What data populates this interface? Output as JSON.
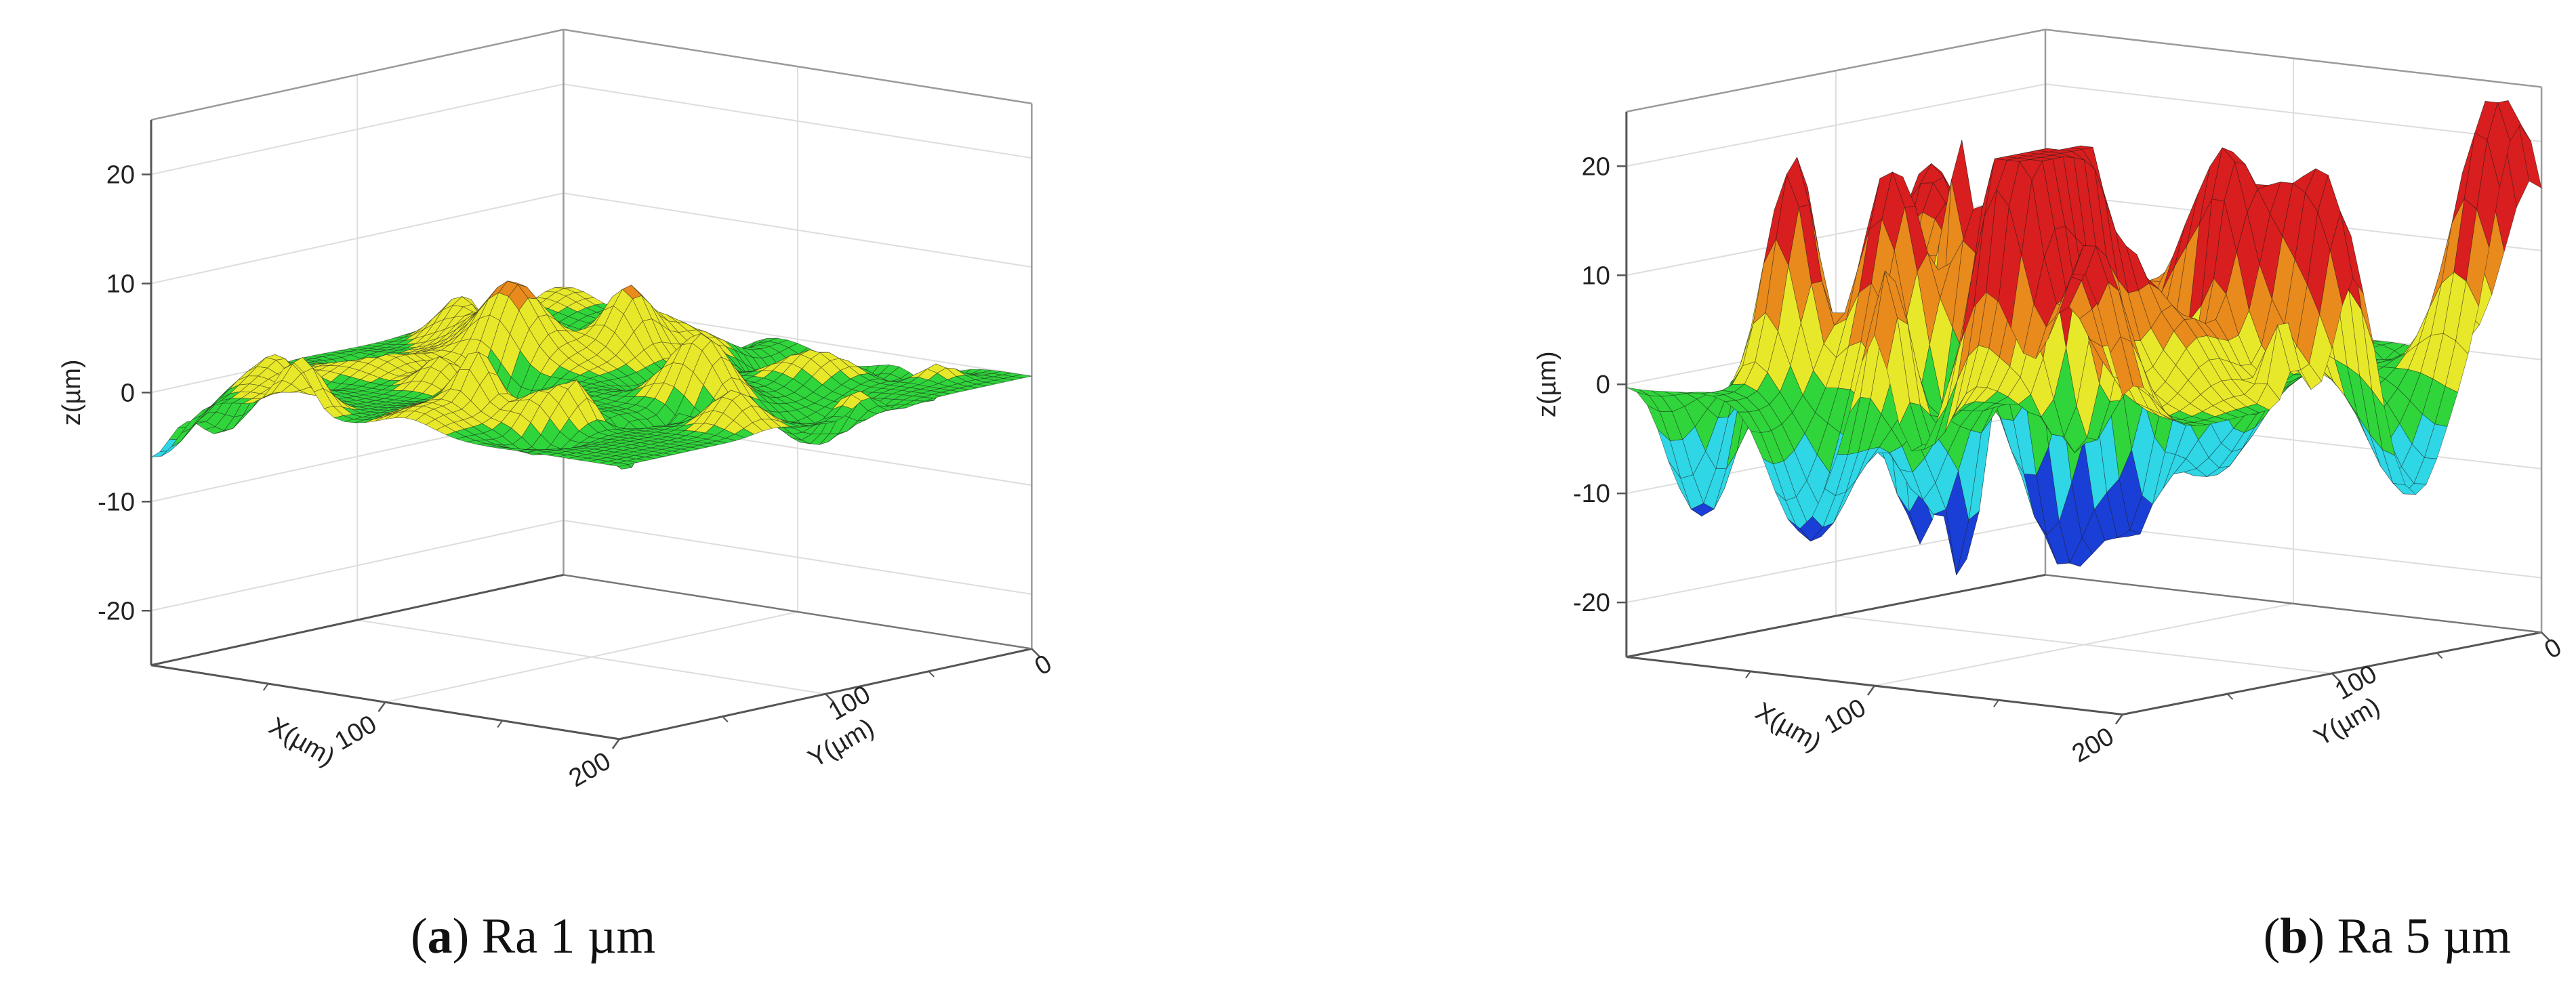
{
  "chart_data": [
    {
      "type": "surface3d",
      "panel_label": "a",
      "caption": "Ra 1 µm",
      "xlabel": "X(µm)",
      "ylabel": "Y(µm)",
      "zlabel": "z(µm)",
      "z_ticks": [
        "20",
        "10",
        "0",
        "-10",
        "-20"
      ],
      "x_ticks": [
        "100",
        "200"
      ],
      "y_ticks": [
        "0",
        "100"
      ],
      "zlim": [
        -25,
        25
      ],
      "xlim": [
        0,
        200
      ],
      "ylim": [
        0,
        200
      ],
      "surface_amplitude": 6,
      "colors": [
        "#1a3fd6",
        "#2ed6e6",
        "#2fd53a",
        "#e8e82a",
        "#e88a1c",
        "#d81e1e"
      ]
    },
    {
      "type": "surface3d",
      "panel_label": "b",
      "caption": "Ra 5 µm",
      "xlabel": "X(µm)",
      "ylabel": "Y(µm)",
      "zlabel": "z(µm)",
      "z_ticks": [
        "20",
        "10",
        "0",
        "-10",
        "-20"
      ],
      "x_ticks": [
        "100",
        "200"
      ],
      "y_ticks": [
        "0",
        "100"
      ],
      "zlim": [
        -25,
        25
      ],
      "xlim": [
        0,
        200
      ],
      "ylim": [
        0,
        200
      ],
      "surface_amplitude": 24,
      "colors": [
        "#1a3fd6",
        "#2ed6e6",
        "#2fd53a",
        "#e8e82a",
        "#e88a1c",
        "#d81e1e"
      ]
    }
  ]
}
